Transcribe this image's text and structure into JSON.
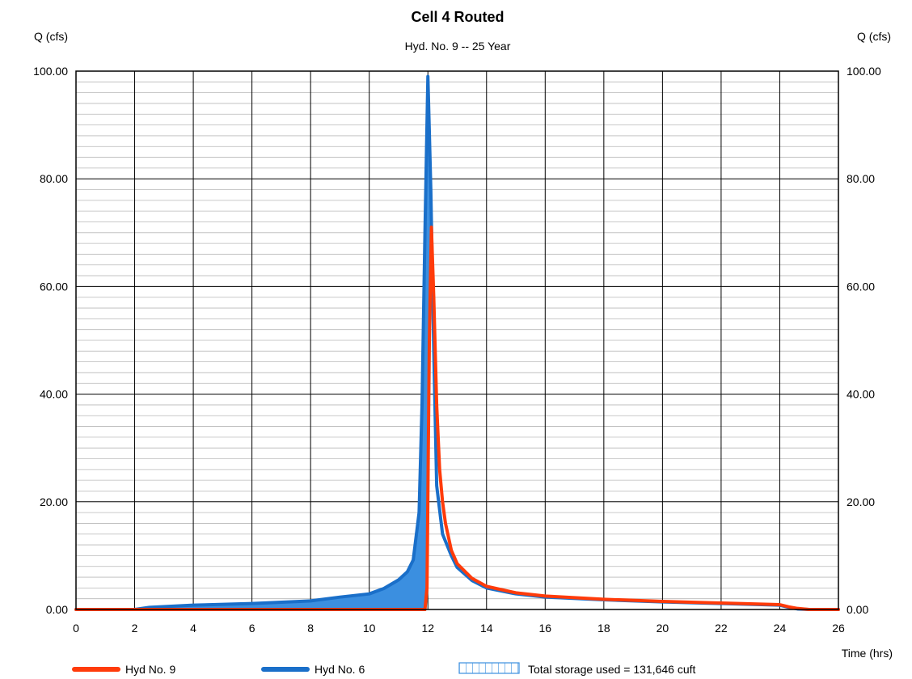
{
  "chart_data": {
    "type": "line",
    "title": "Cell 4 Routed",
    "subtitle": "Hyd. No. 9 -- 25 Year",
    "ylabel_left": "Q (cfs)",
    "ylabel_right": "Q (cfs)",
    "xlabel": "Time (hrs)",
    "xlim": [
      0,
      26
    ],
    "ylim": [
      0,
      100
    ],
    "x_ticks": [
      0,
      2,
      4,
      6,
      8,
      10,
      12,
      14,
      16,
      18,
      20,
      22,
      24,
      26
    ],
    "x_tick_labels": [
      "0",
      "2",
      "4",
      "6",
      "8",
      "10",
      "12",
      "14",
      "16",
      "18",
      "20",
      "22",
      "24",
      "26"
    ],
    "y_ticks": [
      0,
      20,
      40,
      60,
      80,
      100
    ],
    "y_tick_labels": [
      "0.00",
      "20.00",
      "40.00",
      "60.00",
      "80.00",
      "100.00"
    ],
    "y_minor_step": 2,
    "grid": true,
    "legend_position": "bottom",
    "series": [
      {
        "name": "Hyd No. 6",
        "color": "#1a6fc9",
        "fill_color": "#3b8fe0",
        "x": [
          0,
          2,
          2.5,
          4,
          6,
          8,
          9,
          10,
          10.5,
          11,
          11.3,
          11.5,
          11.7,
          11.8,
          11.9,
          12.0,
          12.1,
          12.2,
          12.3,
          12.5,
          12.8,
          13,
          13.5,
          14,
          15,
          16,
          18,
          20,
          22,
          24,
          24.3,
          24.6,
          25,
          26
        ],
        "values": [
          0,
          0,
          0.4,
          0.8,
          1.1,
          1.6,
          2.3,
          2.9,
          3.9,
          5.5,
          7.0,
          9.2,
          18.0,
          38.0,
          70.0,
          99.0,
          78.0,
          48.0,
          23.0,
          14.0,
          10.0,
          7.8,
          5.4,
          4.0,
          2.9,
          2.3,
          1.8,
          1.4,
          1.1,
          0.8,
          0.4,
          0.1,
          0,
          0
        ]
      },
      {
        "name": "Hyd No. 9",
        "color": "#ff3b0a",
        "x": [
          0,
          11.9,
          11.97,
          12.05,
          12.12,
          12.2,
          12.3,
          12.4,
          12.5,
          12.6,
          12.8,
          13,
          13.5,
          14,
          15,
          16,
          18,
          20,
          22,
          24,
          24.3,
          24.6,
          25,
          26
        ],
        "values": [
          0,
          0,
          4.0,
          50.0,
          71.0,
          58.0,
          38.0,
          26.0,
          20.0,
          16.0,
          11.0,
          8.5,
          5.8,
          4.3,
          3.1,
          2.5,
          1.9,
          1.5,
          1.2,
          0.9,
          0.5,
          0.2,
          0,
          0
        ]
      }
    ],
    "storage_note": "Total storage used = 131,646 cuft"
  },
  "legend": {
    "items": [
      {
        "label": "Hyd No. 9",
        "color": "#ff3b0a"
      },
      {
        "label": "Hyd No. 6",
        "color": "#1a6fc9"
      },
      {
        "label": "Total storage used = 131,646 cuft",
        "color": "#3b8fe0"
      }
    ]
  }
}
